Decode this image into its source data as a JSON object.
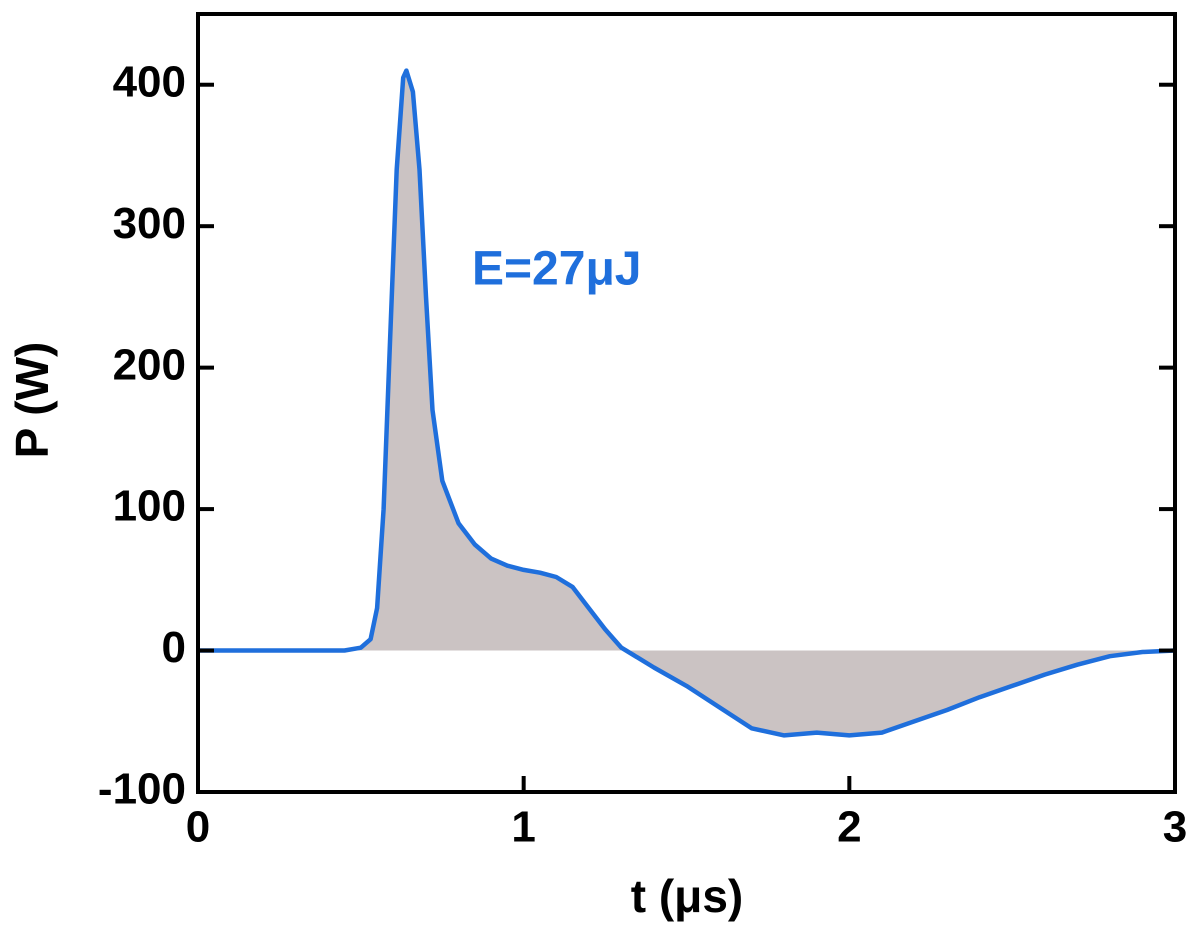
{
  "chart_data": {
    "type": "area-line",
    "x_label": "t (μs)",
    "y_label": "P (W)",
    "annotation": "E=27μJ",
    "x": [
      0,
      0.3,
      0.45,
      0.5,
      0.53,
      0.55,
      0.57,
      0.59,
      0.61,
      0.63,
      0.64,
      0.66,
      0.68,
      0.7,
      0.72,
      0.75,
      0.8,
      0.85,
      0.9,
      0.95,
      1.0,
      1.05,
      1.1,
      1.15,
      1.2,
      1.25,
      1.3,
      1.35,
      1.4,
      1.5,
      1.6,
      1.7,
      1.8,
      1.9,
      2.0,
      2.1,
      2.2,
      2.3,
      2.4,
      2.5,
      2.6,
      2.7,
      2.8,
      2.9,
      3.0
    ],
    "series": [
      {
        "color": "#1f6fdc",
        "fill": "#cbc3c3",
        "values": [
          0,
          0,
          0,
          2,
          8,
          30,
          100,
          220,
          340,
          405,
          410,
          395,
          340,
          250,
          170,
          120,
          90,
          75,
          65,
          60,
          57,
          55,
          52,
          45,
          30,
          15,
          2,
          -5,
          -12,
          -25,
          -40,
          -55,
          -60,
          -58,
          -60,
          -58,
          -50,
          -42,
          -33,
          -25,
          -17,
          -10,
          -4,
          -1,
          0
        ]
      }
    ],
    "xlim": [
      0,
      3
    ],
    "xticks": [
      0,
      1,
      2,
      3
    ],
    "ylim": [
      -100,
      450
    ],
    "yticks": [
      -100,
      0,
      100,
      200,
      300,
      400
    ]
  }
}
